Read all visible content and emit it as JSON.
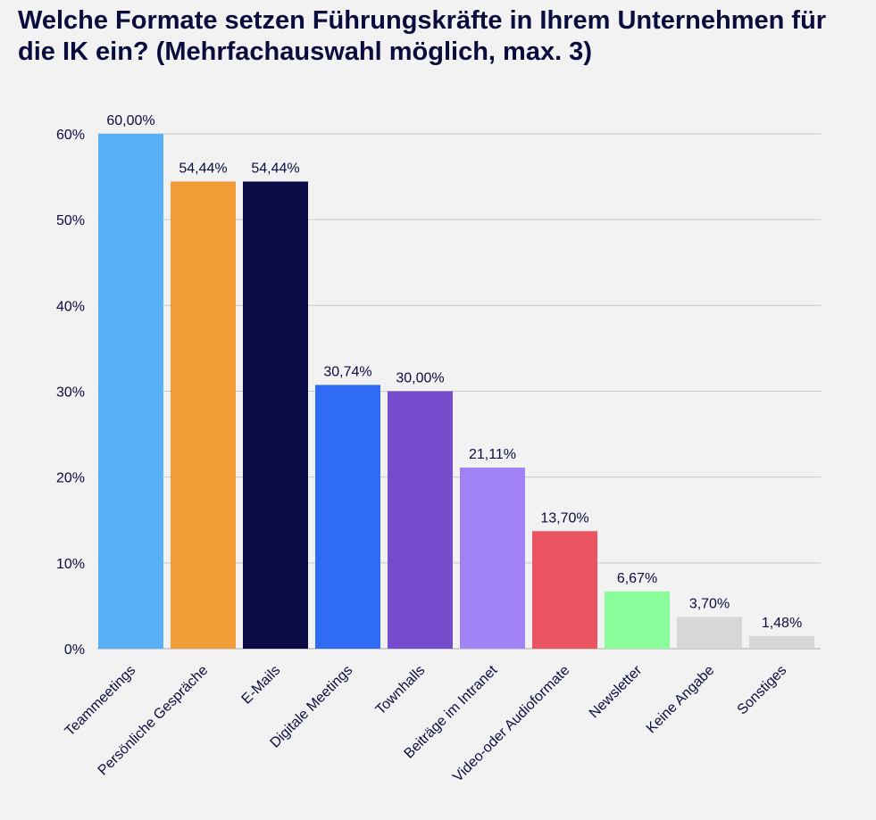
{
  "title": "Welche Formate setzen Führungskräfte in Ihrem Unternehmen für die IK ein? (Mehrfachauswahl möglich, max. 3)",
  "chart_data": {
    "type": "bar",
    "title": "Welche Formate setzen Führungskräfte in Ihrem Unternehmen für die IK ein? (Mehrfachauswahl möglich, max. 3)",
    "xlabel": "",
    "ylabel": "",
    "ylim": [
      0,
      60
    ],
    "y_ticks": [
      "0%",
      "10%",
      "20%",
      "30%",
      "40%",
      "50%",
      "60%"
    ],
    "grid": true,
    "categories": [
      "Teammeetings",
      "Persönliche Gespräche",
      "E-Mails",
      "Digitale Meetings",
      "Townhalls",
      "Beiträge im Intranet",
      "Video-oder Audioformate",
      "Newsletter",
      "Keine Angabe",
      "Sonstiges"
    ],
    "values": [
      60.0,
      54.44,
      54.44,
      30.74,
      30.0,
      21.11,
      13.7,
      6.67,
      3.7,
      1.48
    ],
    "value_labels": [
      "60,00%",
      "54,44%",
      "54,44%",
      "30,74%",
      "30,00%",
      "21,11%",
      "13,70%",
      "6,67%",
      "3,70%",
      "1,48%"
    ],
    "colors": [
      "#58b1f8",
      "#f29c38",
      "#0b0c46",
      "#2f6bf5",
      "#744ccc",
      "#a283f6",
      "#ea5561",
      "#88fd9a",
      "#d7d7d7",
      "#d7d7d7"
    ]
  }
}
